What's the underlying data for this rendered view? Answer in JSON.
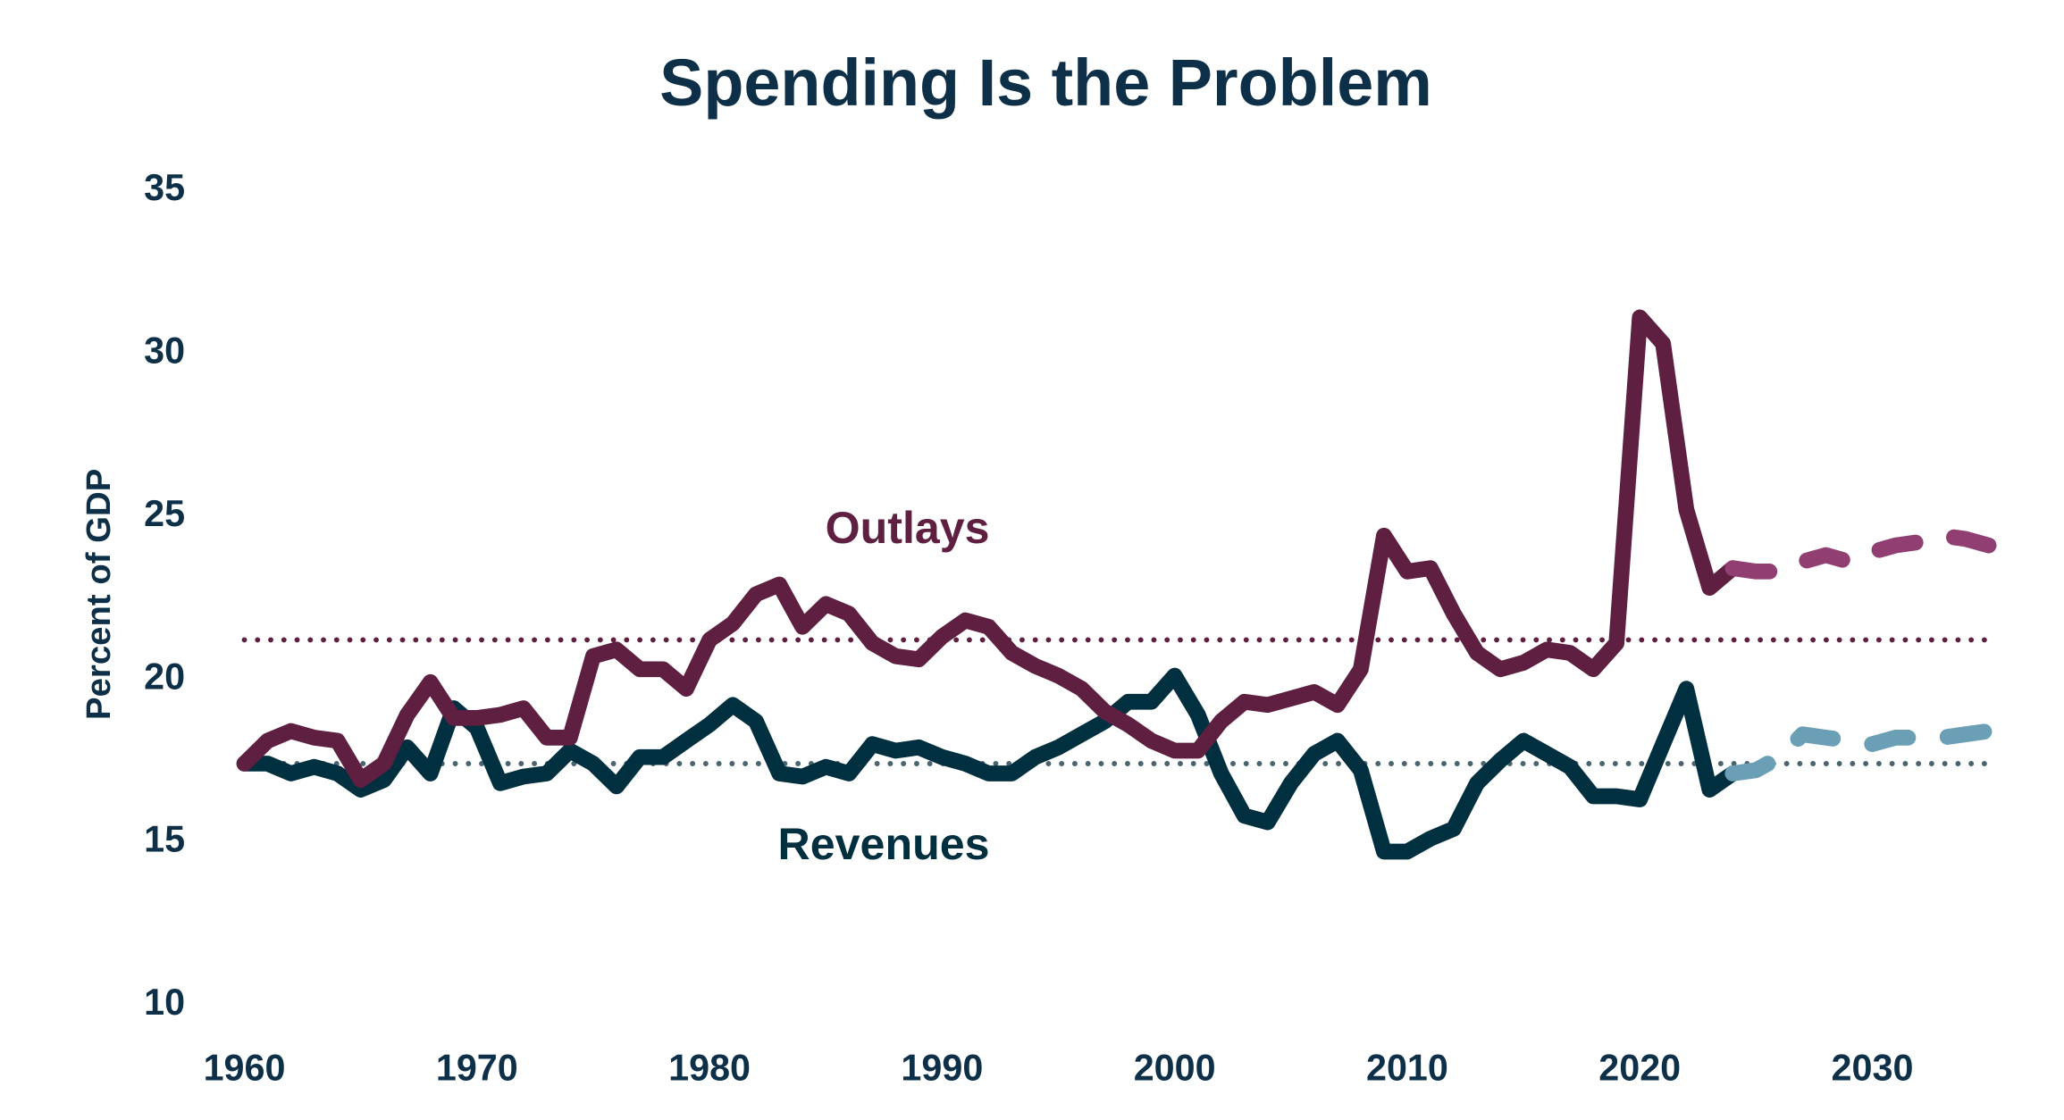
{
  "chart_data": {
    "type": "line",
    "title": "Spending Is the Problem",
    "ylabel": "Percent of GDP",
    "xlabel": "",
    "xlim": [
      1960,
      2035
    ],
    "ylim": [
      10,
      35
    ],
    "xticks": [
      1960,
      1970,
      1980,
      1990,
      2000,
      2010,
      2020,
      2030
    ],
    "yticks": [
      10,
      15,
      20,
      25,
      30,
      35
    ],
    "grid": false,
    "colors": {
      "title": "#0d3048",
      "axis_text": "#0d3048",
      "outlays": "#5e1f40",
      "outlays_projected": "#913f73",
      "revenues": "#00303f",
      "revenues_projected": "#6a9fb5",
      "outlays_average": "#5e1f40",
      "revenues_average": "#4a6470"
    },
    "series": [
      {
        "name": "Outlays",
        "style": "solid",
        "x": [
          1960,
          1961,
          1962,
          1963,
          1964,
          1965,
          1966,
          1967,
          1968,
          1969,
          1970,
          1971,
          1972,
          1973,
          1974,
          1975,
          1976,
          1977,
          1978,
          1979,
          1980,
          1981,
          1982,
          1983,
          1984,
          1985,
          1986,
          1987,
          1988,
          1989,
          1990,
          1991,
          1992,
          1993,
          1994,
          1995,
          1996,
          1997,
          1998,
          1999,
          2000,
          2001,
          2002,
          2003,
          2004,
          2005,
          2006,
          2007,
          2008,
          2009,
          2010,
          2011,
          2012,
          2013,
          2014,
          2015,
          2016,
          2017,
          2018,
          2019,
          2020,
          2021,
          2022,
          2023,
          2024
        ],
        "values": [
          17.3,
          18.0,
          18.3,
          18.1,
          18.0,
          16.8,
          17.3,
          18.8,
          19.8,
          18.7,
          18.7,
          18.8,
          19.0,
          18.1,
          18.1,
          20.6,
          20.8,
          20.2,
          20.2,
          19.6,
          21.1,
          21.6,
          22.5,
          22.8,
          21.5,
          22.2,
          21.9,
          21.0,
          20.6,
          20.5,
          21.2,
          21.7,
          21.5,
          20.7,
          20.3,
          20.0,
          19.6,
          18.9,
          18.5,
          18.0,
          17.7,
          17.7,
          18.6,
          19.2,
          19.1,
          19.3,
          19.5,
          19.1,
          20.2,
          24.3,
          23.2,
          23.3,
          21.9,
          20.7,
          20.2,
          20.4,
          20.8,
          20.7,
          20.2,
          21.0,
          31.0,
          30.2,
          25.1,
          22.7,
          23.3
        ]
      },
      {
        "name": "Outlays",
        "style": "dashed",
        "x": [
          2024,
          2025,
          2026,
          2027,
          2028,
          2029,
          2030,
          2031,
          2032,
          2033,
          2034,
          2035
        ],
        "values": [
          23.3,
          23.2,
          23.2,
          23.5,
          23.7,
          23.5,
          23.8,
          24.0,
          24.1,
          24.3,
          24.2,
          24.0
        ]
      },
      {
        "name": "Revenues",
        "style": "solid",
        "x": [
          1960,
          1961,
          1962,
          1963,
          1964,
          1965,
          1966,
          1967,
          1968,
          1969,
          1970,
          1971,
          1972,
          1973,
          1974,
          1975,
          1976,
          1977,
          1978,
          1979,
          1980,
          1981,
          1982,
          1983,
          1984,
          1985,
          1986,
          1987,
          1988,
          1989,
          1990,
          1991,
          1992,
          1993,
          1994,
          1995,
          1996,
          1997,
          1998,
          1999,
          2000,
          2001,
          2002,
          2003,
          2004,
          2005,
          2006,
          2007,
          2008,
          2009,
          2010,
          2011,
          2012,
          2013,
          2014,
          2015,
          2016,
          2017,
          2018,
          2019,
          2020,
          2021,
          2022,
          2023,
          2024
        ],
        "values": [
          17.3,
          17.3,
          17.0,
          17.2,
          17.0,
          16.5,
          16.8,
          17.8,
          17.0,
          19.0,
          18.4,
          16.7,
          16.9,
          17.0,
          17.7,
          17.3,
          16.6,
          17.5,
          17.5,
          18.0,
          18.5,
          19.1,
          18.6,
          17.0,
          16.9,
          17.2,
          17.0,
          17.9,
          17.7,
          17.8,
          17.5,
          17.3,
          17.0,
          17.0,
          17.5,
          17.8,
          18.2,
          18.6,
          19.2,
          19.2,
          20.0,
          18.8,
          17.0,
          15.7,
          15.5,
          16.7,
          17.6,
          18.0,
          17.1,
          14.6,
          14.6,
          15.0,
          15.3,
          16.7,
          17.4,
          18.0,
          17.6,
          17.2,
          16.3,
          16.3,
          16.2,
          17.9,
          19.6,
          16.5,
          17.0
        ]
      },
      {
        "name": "Revenues",
        "style": "dashed",
        "x": [
          2024,
          2025,
          2026,
          2027,
          2028,
          2029,
          2030,
          2031,
          2032,
          2033,
          2034,
          2035
        ],
        "values": [
          17.0,
          17.1,
          17.5,
          18.2,
          18.1,
          18.0,
          17.9,
          18.1,
          18.1,
          18.1,
          18.2,
          18.3
        ]
      }
    ],
    "reference_lines": [
      {
        "series": "Outlays",
        "style": "dotted",
        "value": 21.1
      },
      {
        "series": "Revenues",
        "style": "dotted",
        "value": 17.3
      }
    ],
    "annotations": [
      "Outlays",
      "Revenues"
    ]
  }
}
